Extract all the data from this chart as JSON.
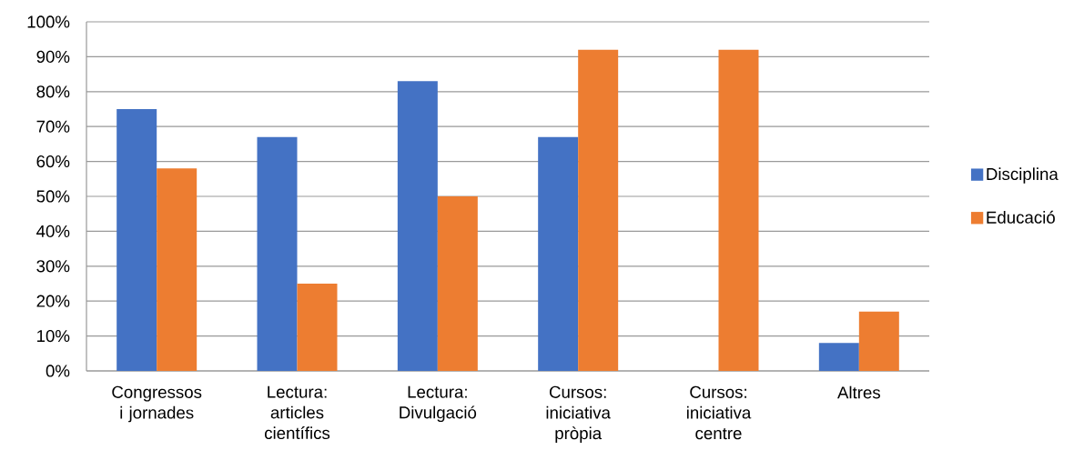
{
  "chart_data": {
    "type": "bar",
    "categories": [
      "Congressos i jornades",
      "Lectura: articles científics",
      "Lectura: Divulgació",
      "Cursos: iniciativa pròpia",
      "Cursos: iniciativa centre",
      "Altres"
    ],
    "series": [
      {
        "name": "Disciplina",
        "color": "#4472c4",
        "values": [
          75,
          67,
          83,
          67,
          null,
          8
        ]
      },
      {
        "name": "Educació",
        "color": "#ed7d31",
        "values": [
          58,
          25,
          50,
          92,
          92,
          17
        ]
      }
    ],
    "ylim": [
      0,
      100
    ],
    "yticks": [
      {
        "value": 0,
        "label": "0%"
      },
      {
        "value": 10,
        "label": "10%"
      },
      {
        "value": 20,
        "label": "20%"
      },
      {
        "value": 30,
        "label": "30%"
      },
      {
        "value": 40,
        "label": "40%"
      },
      {
        "value": 50,
        "label": "50%"
      },
      {
        "value": 60,
        "label": "60%"
      },
      {
        "value": 70,
        "label": "70%"
      },
      {
        "value": 80,
        "label": "80%"
      },
      {
        "value": 90,
        "label": "90%"
      },
      {
        "value": 100,
        "label": "100%"
      }
    ],
    "grid": "y",
    "legend": "right"
  }
}
